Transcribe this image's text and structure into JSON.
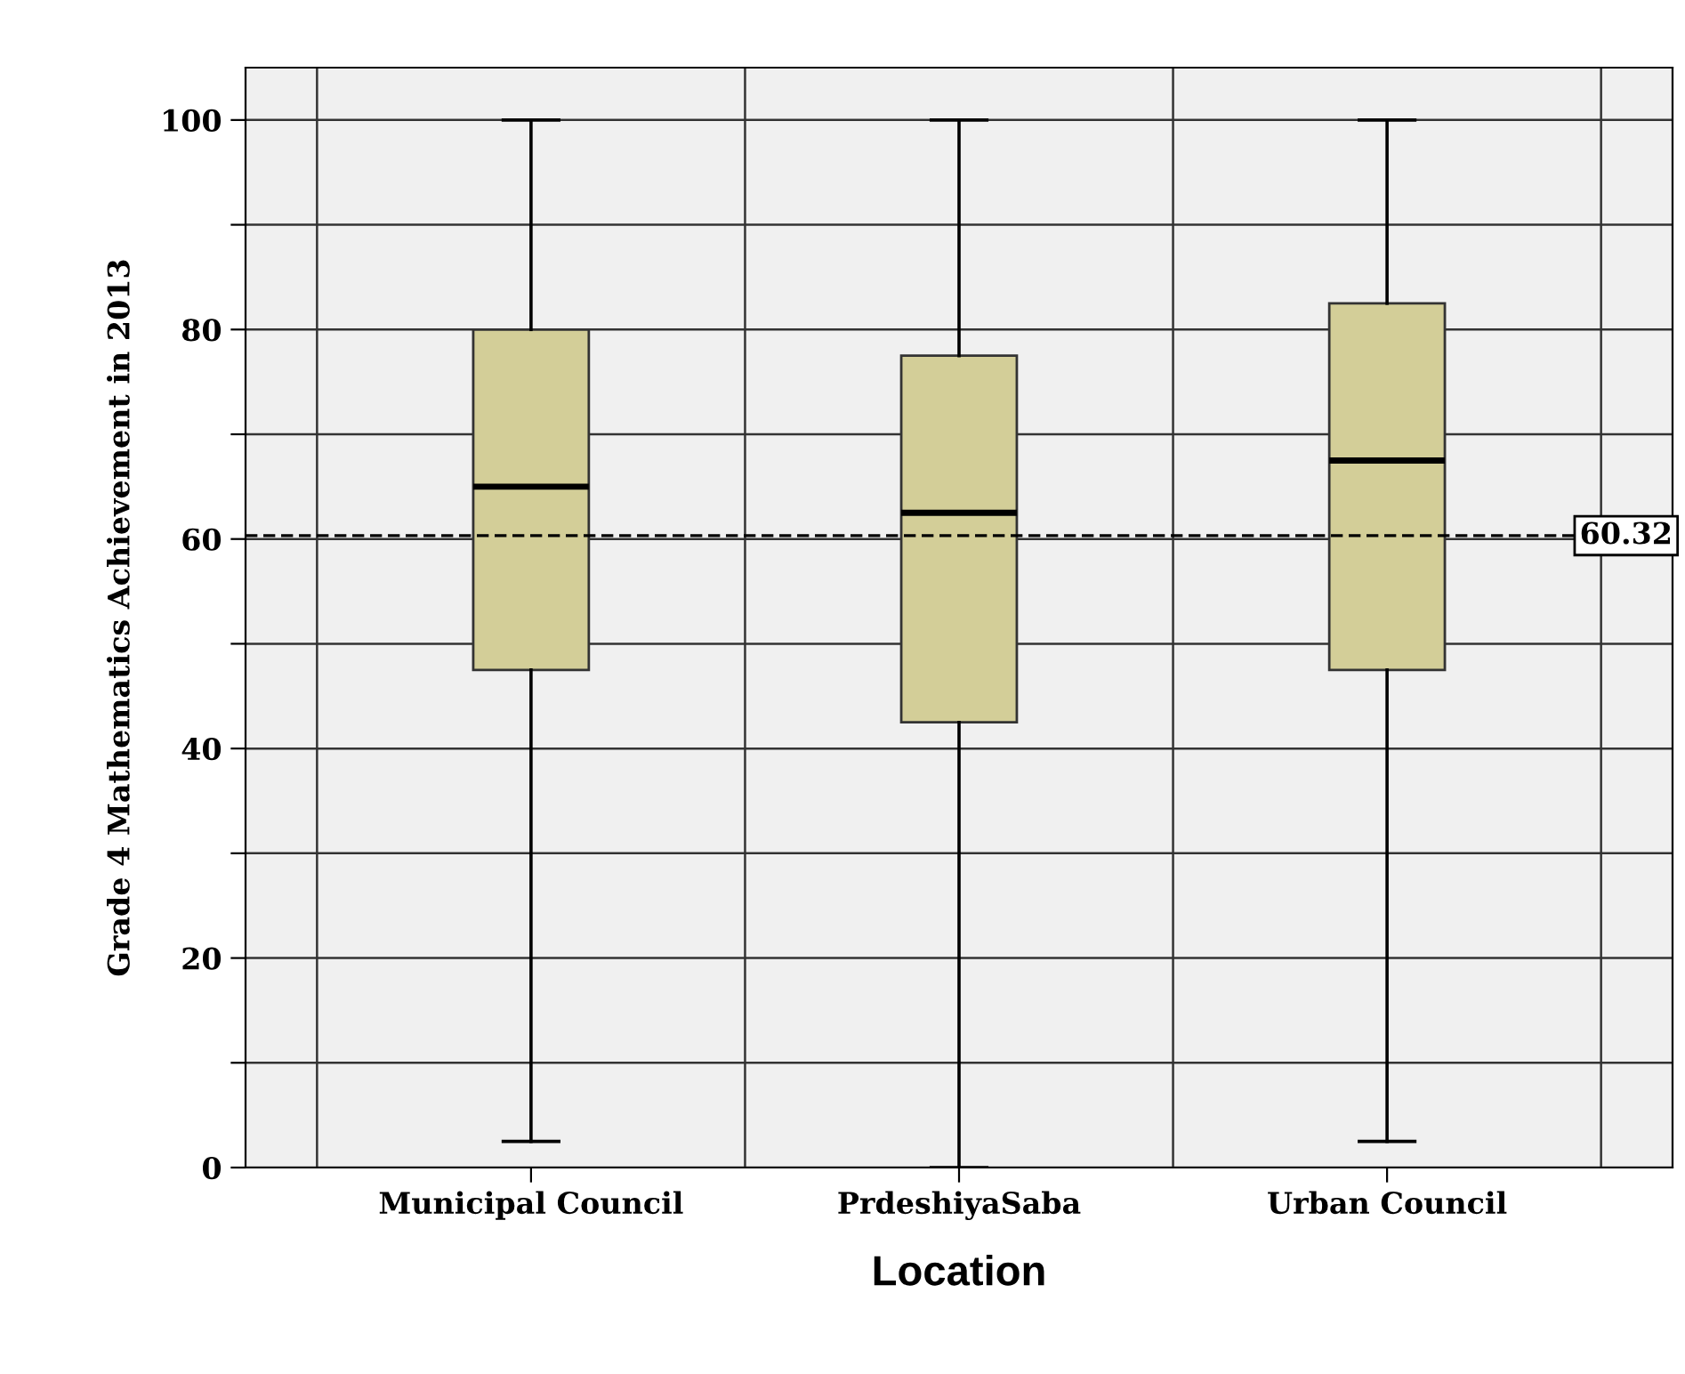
{
  "chart_data": {
    "type": "box",
    "xlabel": "Location",
    "ylabel": "Grade 4 Mathematics Achievement in 2013",
    "categories": [
      "Municipal Council",
      "PrdeshiyaSaba",
      "Urban Council"
    ],
    "boxes": [
      {
        "low": 2.5,
        "q1": 47.5,
        "median": 65,
        "q3": 80,
        "high": 100
      },
      {
        "low": 0,
        "q1": 42.5,
        "median": 62.5,
        "q3": 77.5,
        "high": 100
      },
      {
        "low": 2.5,
        "q1": 47.5,
        "median": 67.5,
        "q3": 82.5,
        "high": 100
      }
    ],
    "color": "#d3ce98",
    "ylim": [
      0,
      105
    ],
    "yticks": [
      0,
      {
        "value": 10,
        "label": null
      },
      20,
      {
        "value": 30,
        "label": null
      },
      40,
      {
        "value": 50,
        "label": null
      },
      60,
      {
        "value": 70,
        "label": null
      },
      80,
      {
        "value": 90,
        "label": null
      },
      100
    ],
    "ref_lines": [
      {
        "axis": "y",
        "value": 60.32,
        "label": "60.32",
        "line_style": "dashed"
      }
    ],
    "grid": true
  }
}
